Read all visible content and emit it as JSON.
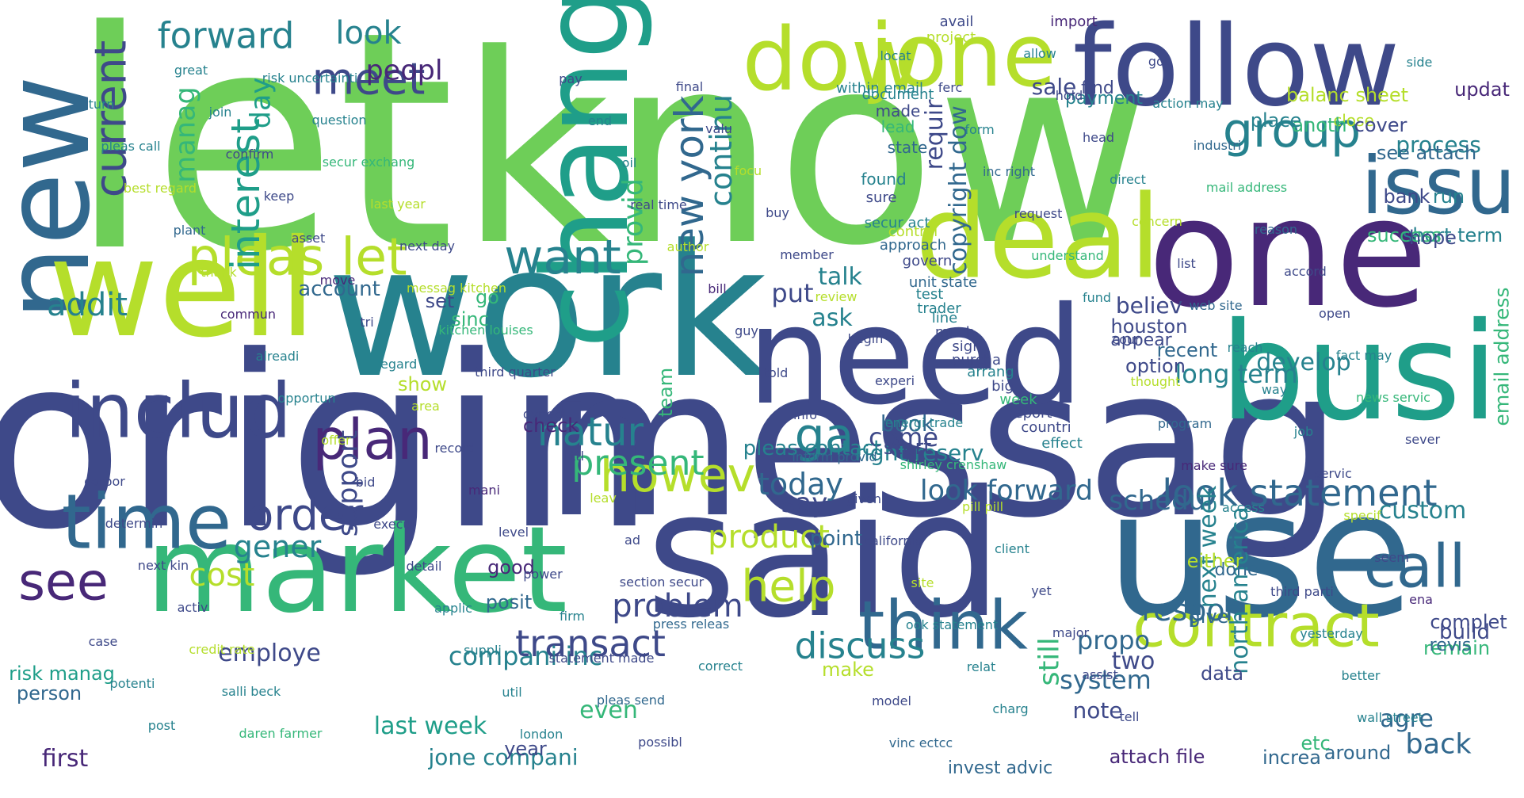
{
  "palette": [
    "#440154",
    "#482878",
    "#3e4989",
    "#31688e",
    "#26828e",
    "#1f9e89",
    "#35b779",
    "#6ece58",
    "#b5de2b",
    "#fde725"
  ],
  "words": [
    {
      "text": "let",
      "color": "#6ece58"
    },
    {
      "text": "know",
      "color": "#6ece58"
    },
    {
      "text": "origin",
      "color": "#3e4989"
    },
    {
      "text": "messag",
      "color": "#3e4989"
    },
    {
      "text": "work",
      "color": "#26828e"
    },
    {
      "text": "said",
      "color": "#3e4989"
    },
    {
      "text": "use",
      "color": "#31688e"
    },
    {
      "text": "market",
      "color": "#35b779"
    },
    {
      "text": "need",
      "color": "#3e4989"
    },
    {
      "text": "busi",
      "color": "#1f9e89"
    },
    {
      "text": "one",
      "color": "#482878"
    },
    {
      "text": "new",
      "color": "#31688e"
    },
    {
      "text": "well",
      "color": "#b5de2b"
    },
    {
      "text": "follow",
      "color": "#3e4989"
    },
    {
      "text": "deal",
      "color": "#b5de2b"
    },
    {
      "text": "chang",
      "color": "#1f9e89"
    },
    {
      "text": "jone",
      "color": "#b5de2b"
    },
    {
      "text": "dow",
      "color": "#b5de2b"
    },
    {
      "text": "issu",
      "color": "#31688e"
    },
    {
      "text": "includ",
      "color": "#3e4989"
    },
    {
      "text": "time",
      "color": "#31688e"
    },
    {
      "text": "plan",
      "color": "#482878"
    },
    {
      "text": "think",
      "color": "#31688e"
    },
    {
      "text": "contract",
      "color": "#b5de2b"
    },
    {
      "text": "see",
      "color": "#482878"
    },
    {
      "text": "pleas let",
      "color": "#b5de2b"
    },
    {
      "text": "want",
      "color": "#26828e"
    },
    {
      "text": "meet",
      "color": "#3e4989"
    },
    {
      "text": "order",
      "color": "#3e4989"
    },
    {
      "text": "howev",
      "color": "#b5de2b"
    },
    {
      "text": "call",
      "color": "#31688e"
    },
    {
      "text": "group",
      "color": "#26828e"
    },
    {
      "text": "look statement",
      "color": "#31688e"
    },
    {
      "text": "natur",
      "color": "#26828e"
    },
    {
      "text": "transact",
      "color": "#3e4989"
    },
    {
      "text": "discuss",
      "color": "#26828e"
    },
    {
      "text": "ga",
      "color": "#26828e"
    },
    {
      "text": "help",
      "color": "#b5de2b"
    },
    {
      "text": "present",
      "color": "#35b779"
    },
    {
      "text": "respon",
      "color": "#31688e"
    },
    {
      "text": "problem",
      "color": "#3e4989"
    },
    {
      "text": "current",
      "color": "#3e4989"
    },
    {
      "text": "forward",
      "color": "#26828e"
    },
    {
      "text": "look",
      "color": "#26828e"
    },
    {
      "text": "peopl",
      "color": "#482878"
    },
    {
      "text": "new york",
      "color": "#31688e"
    },
    {
      "text": "continu",
      "color": "#26828e"
    },
    {
      "text": "provid",
      "color": "#35b779"
    },
    {
      "text": "interest",
      "color": "#1f9e89"
    },
    {
      "text": "manag",
      "color": "#35b779"
    },
    {
      "text": "day",
      "color": "#1f9e89"
    },
    {
      "text": "addit",
      "color": "#26828e"
    },
    {
      "text": "gener",
      "color": "#26828e"
    },
    {
      "text": "support",
      "color": "#3e4989"
    },
    {
      "text": "cost",
      "color": "#b5de2b"
    },
    {
      "text": "employe",
      "color": "#3e4989"
    },
    {
      "text": "product",
      "color": "#b5de2b"
    },
    {
      "text": "today",
      "color": "#31688e"
    },
    {
      "text": "say",
      "color": "#3e4989"
    },
    {
      "text": "schedul",
      "color": "#31688e"
    },
    {
      "text": "look forward",
      "color": "#31688e"
    },
    {
      "text": "right reserv",
      "color": "#26828e"
    },
    {
      "text": "come",
      "color": "#3e4989"
    },
    {
      "text": "copyright dow",
      "color": "#31688e"
    },
    {
      "text": "requir",
      "color": "#3e4989"
    },
    {
      "text": "put",
      "color": "#3e4989"
    },
    {
      "text": "ask",
      "color": "#26828e"
    },
    {
      "text": "talk",
      "color": "#26828e"
    },
    {
      "text": "sale",
      "color": "#3e4989"
    },
    {
      "text": "updat",
      "color": "#482878"
    },
    {
      "text": "process",
      "color": "#26828e"
    },
    {
      "text": "long term",
      "color": "#26828e"
    },
    {
      "text": "develop",
      "color": "#26828e"
    },
    {
      "text": "custom",
      "color": "#26828e"
    },
    {
      "text": "email address",
      "color": "#35b779"
    },
    {
      "text": "back",
      "color": "#31688e"
    },
    {
      "text": "agre",
      "color": "#31688e"
    },
    {
      "text": "system",
      "color": "#31688e"
    },
    {
      "text": "propo",
      "color": "#31688e"
    },
    {
      "text": "still",
      "color": "#35b779"
    },
    {
      "text": "note",
      "color": "#3e4989"
    },
    {
      "text": "two",
      "color": "#3e4989"
    },
    {
      "text": "next week",
      "color": "#26828e"
    },
    {
      "text": "north america",
      "color": "#26828e"
    },
    {
      "text": "book",
      "color": "#31688e"
    },
    {
      "text": "start",
      "color": "#3e4989"
    },
    {
      "text": "team",
      "color": "#35b779"
    },
    {
      "text": "check",
      "color": "#482878"
    },
    {
      "text": "point",
      "color": "#31688e"
    },
    {
      "text": "make",
      "color": "#b5de2b"
    },
    {
      "text": "even",
      "color": "#35b779"
    },
    {
      "text": "compani inc",
      "color": "#26828e"
    },
    {
      "text": "last week",
      "color": "#1f9e89"
    },
    {
      "text": "jone compani",
      "color": "#26828e"
    },
    {
      "text": "first",
      "color": "#482878"
    },
    {
      "text": "person",
      "color": "#31688e"
    },
    {
      "text": "risk manag",
      "color": "#1f9e89"
    },
    {
      "text": "year",
      "color": "#3e4989"
    },
    {
      "text": "posit",
      "color": "#31688e"
    },
    {
      "text": "good",
      "color": "#482878"
    },
    {
      "text": "sinc",
      "color": "#35b779"
    },
    {
      "text": "set",
      "color": "#3e4989"
    },
    {
      "text": "show",
      "color": "#b5de2b"
    },
    {
      "text": "account",
      "color": "#31688e"
    },
    {
      "text": "go",
      "color": "#35b779"
    },
    {
      "text": "believ",
      "color": "#3e4989"
    },
    {
      "text": "houston",
      "color": "#3e4989"
    },
    {
      "text": "appear",
      "color": "#3e4989"
    },
    {
      "text": "option",
      "color": "#3e4989"
    },
    {
      "text": "recent",
      "color": "#31688e"
    },
    {
      "text": "pleas contact",
      "color": "#26828e"
    },
    {
      "text": "data",
      "color": "#3e4989"
    },
    {
      "text": "either",
      "color": "#b5de2b"
    },
    {
      "text": "done",
      "color": "#31688e"
    },
    {
      "text": "give",
      "color": "#31688e"
    },
    {
      "text": "attach file",
      "color": "#482878"
    },
    {
      "text": "invest advic",
      "color": "#31688e"
    },
    {
      "text": "increa",
      "color": "#31688e"
    },
    {
      "text": "around",
      "color": "#31688e"
    },
    {
      "text": "etc",
      "color": "#35b779"
    },
    {
      "text": "remain",
      "color": "#35b779"
    },
    {
      "text": "revis",
      "color": "#31688e"
    },
    {
      "text": "build",
      "color": "#3e4989"
    },
    {
      "text": "complet",
      "color": "#3e4989"
    },
    {
      "text": "short term",
      "color": "#26828e"
    },
    {
      "text": "success",
      "color": "#35b779"
    },
    {
      "text": "hope",
      "color": "#3e4989"
    },
    {
      "text": "run",
      "color": "#26828e"
    },
    {
      "text": "bank",
      "color": "#3e4989"
    },
    {
      "text": "see attach",
      "color": "#31688e"
    },
    {
      "text": "close",
      "color": "#b5de2b"
    },
    {
      "text": "cover",
      "color": "#3e4989"
    },
    {
      "text": "anoth",
      "color": "#35b779"
    },
    {
      "text": "place",
      "color": "#26828e"
    },
    {
      "text": "balanc sheet",
      "color": "#b5de2b"
    },
    {
      "text": "find",
      "color": "#3e4989"
    },
    {
      "text": "payment",
      "color": "#26828e"
    },
    {
      "text": "import",
      "color": "#482878"
    },
    {
      "text": "avail",
      "color": "#3e4989"
    },
    {
      "text": "project",
      "color": "#b5de2b"
    },
    {
      "text": "locat",
      "color": "#26828e"
    },
    {
      "text": "within email",
      "color": "#26828e"
    },
    {
      "text": "document",
      "color": "#26828e"
    },
    {
      "text": "made",
      "color": "#3e4989"
    },
    {
      "text": "lead",
      "color": "#35b779"
    },
    {
      "text": "state",
      "color": "#31688e"
    },
    {
      "text": "found",
      "color": "#26828e"
    },
    {
      "text": "sure",
      "color": "#3e4989"
    },
    {
      "text": "secur act",
      "color": "#26828e"
    },
    {
      "text": "control",
      "color": "#b5de2b"
    },
    {
      "text": "approach",
      "color": "#31688e"
    },
    {
      "text": "govern",
      "color": "#3e4989"
    },
    {
      "text": "unit state",
      "color": "#31688e"
    },
    {
      "text": "test",
      "color": "#26828e"
    },
    {
      "text": "trader",
      "color": "#26828e"
    },
    {
      "text": "line",
      "color": "#26828e"
    },
    {
      "text": "much",
      "color": "#3e4989"
    },
    {
      "text": "sign",
      "color": "#3e4989"
    },
    {
      "text": "purcha",
      "color": "#3e4989"
    },
    {
      "text": "arrang",
      "color": "#26828e"
    },
    {
      "text": "big",
      "color": "#3e4989"
    },
    {
      "text": "week",
      "color": "#35b779"
    },
    {
      "text": "report",
      "color": "#3e4989"
    },
    {
      "text": "countri",
      "color": "#3e4989"
    },
    {
      "text": "effect",
      "color": "#26828e"
    },
    {
      "text": "model",
      "color": "#3e4989"
    },
    {
      "text": "vinc ectcc",
      "color": "#31688e"
    },
    {
      "text": "ferc",
      "color": "#3e4989"
    },
    {
      "text": "form",
      "color": "#26828e"
    },
    {
      "text": "inc right",
      "color": "#31688e"
    },
    {
      "text": "request",
      "color": "#3e4989"
    },
    {
      "text": "understand",
      "color": "#35b779"
    },
    {
      "text": "fund",
      "color": "#26828e"
    },
    {
      "text": "cour",
      "color": "#3e4989"
    },
    {
      "text": "thought",
      "color": "#b5de2b"
    },
    {
      "text": "program",
      "color": "#31688e"
    },
    {
      "text": "make sure",
      "color": "#482878"
    },
    {
      "text": "access",
      "color": "#26828e"
    },
    {
      "text": "take",
      "color": "#3e4989"
    },
    {
      "text": "third parti",
      "color": "#3e4989"
    },
    {
      "text": "yesterday",
      "color": "#26828e"
    },
    {
      "text": "better",
      "color": "#26828e"
    },
    {
      "text": "wall street",
      "color": "#26828e"
    },
    {
      "text": "side",
      "color": "#26828e"
    },
    {
      "text": "turn",
      "color": "#26828e"
    },
    {
      "text": "pleas call",
      "color": "#26828e"
    },
    {
      "text": "best regard",
      "color": "#b5de2b"
    },
    {
      "text": "plant",
      "color": "#31688e"
    },
    {
      "text": "thank",
      "color": "#b5de2b"
    },
    {
      "text": "commun",
      "color": "#482878"
    },
    {
      "text": "alreadi",
      "color": "#26828e"
    },
    {
      "text": "opportun",
      "color": "#26828e"
    },
    {
      "text": "offer",
      "color": "#b5de2b"
    },
    {
      "text": "bid",
      "color": "#3e4989"
    },
    {
      "text": "execut",
      "color": "#3e4989"
    },
    {
      "text": "detail",
      "color": "#3e4989"
    },
    {
      "text": "applic",
      "color": "#26828e"
    },
    {
      "text": "suppli",
      "color": "#26828e"
    },
    {
      "text": "util",
      "color": "#26828e"
    },
    {
      "text": "london",
      "color": "#26828e"
    },
    {
      "text": "pay",
      "color": "#3e4989"
    },
    {
      "text": "end",
      "color": "#26828e"
    },
    {
      "text": "oil",
      "color": "#26828e"
    },
    {
      "text": "real time",
      "color": "#3e4989"
    },
    {
      "text": "author",
      "color": "#b5de2b"
    },
    {
      "text": "bill",
      "color": "#482878"
    },
    {
      "text": "guy",
      "color": "#3e4989"
    },
    {
      "text": "told",
      "color": "#3e4989"
    },
    {
      "text": "info",
      "color": "#3e4989"
    },
    {
      "text": "inform provid",
      "color": "#31688e"
    },
    {
      "text": "given",
      "color": "#3e4989"
    },
    {
      "text": "california",
      "color": "#3e4989"
    },
    {
      "text": "site",
      "color": "#b5de2b"
    },
    {
      "text": "ook statement",
      "color": "#26828e"
    },
    {
      "text": "relat",
      "color": "#26828e"
    },
    {
      "text": "charg",
      "color": "#26828e"
    },
    {
      "text": "allow",
      "color": "#26828e"
    },
    {
      "text": "hold",
      "color": "#3e4989"
    },
    {
      "text": "head",
      "color": "#3e4989"
    },
    {
      "text": "direct",
      "color": "#26828e"
    },
    {
      "text": "concern",
      "color": "#b5de2b"
    },
    {
      "text": "list",
      "color": "#3e4989"
    },
    {
      "text": "web site",
      "color": "#31688e"
    },
    {
      "text": "reach",
      "color": "#26828e"
    },
    {
      "text": "way",
      "color": "#26828e"
    },
    {
      "text": "job",
      "color": "#26828e"
    },
    {
      "text": "servic",
      "color": "#3e4989"
    },
    {
      "text": "specif",
      "color": "#b5de2b"
    },
    {
      "text": "seem",
      "color": "#3e4989"
    },
    {
      "text": "ena",
      "color": "#482878"
    },
    {
      "text": "case",
      "color": "#3e4989"
    },
    {
      "text": "potenti",
      "color": "#26828e"
    },
    {
      "text": "post",
      "color": "#26828e"
    },
    {
      "text": "great",
      "color": "#26828e"
    },
    {
      "text": "join",
      "color": "#26828e"
    },
    {
      "text": "confirm",
      "color": "#3e4989"
    },
    {
      "text": "keep",
      "color": "#3e4989"
    },
    {
      "text": "asset",
      "color": "#3e4989"
    },
    {
      "text": "move",
      "color": "#482878"
    },
    {
      "text": "tri",
      "color": "#3e4989"
    },
    {
      "text": "regard",
      "color": "#26828e"
    },
    {
      "text": "area",
      "color": "#b5de2b"
    },
    {
      "text": "record",
      "color": "#3e4989"
    },
    {
      "text": "mani",
      "color": "#482878"
    },
    {
      "text": "level",
      "color": "#3e4989"
    },
    {
      "text": "power",
      "color": "#3e4989"
    },
    {
      "text": "firm",
      "color": "#26828e"
    },
    {
      "text": "statement made",
      "color": "#3e4989"
    },
    {
      "text": "pleas send",
      "color": "#31688e"
    },
    {
      "text": "possibl",
      "color": "#3e4989"
    },
    {
      "text": "final",
      "color": "#3e4989"
    },
    {
      "text": "valu",
      "color": "#3e4989"
    },
    {
      "text": "focu",
      "color": "#b5de2b"
    },
    {
      "text": "buy",
      "color": "#3e4989"
    },
    {
      "text": "member",
      "color": "#3e4989"
    },
    {
      "text": "review",
      "color": "#b5de2b"
    },
    {
      "text": "begin",
      "color": "#3e4989"
    },
    {
      "text": "experi",
      "color": "#3e4989"
    },
    {
      "text": "energi trade",
      "color": "#26828e"
    },
    {
      "text": "shirley crenshaw",
      "color": "#35b779"
    },
    {
      "text": "pill pill",
      "color": "#b5de2b"
    },
    {
      "text": "client",
      "color": "#26828e"
    },
    {
      "text": "yet",
      "color": "#3e4989"
    },
    {
      "text": "major",
      "color": "#3e4989"
    },
    {
      "text": "assist",
      "color": "#3e4989"
    },
    {
      "text": "tell",
      "color": "#3e4989"
    },
    {
      "text": "got",
      "color": "#3e4989"
    },
    {
      "text": "action may",
      "color": "#26828e"
    },
    {
      "text": "industri",
      "color": "#31688e"
    },
    {
      "text": "mail address",
      "color": "#35b779"
    },
    {
      "text": "reason",
      "color": "#31688e"
    },
    {
      "text": "accord",
      "color": "#3e4989"
    },
    {
      "text": "open",
      "color": "#3e4989"
    },
    {
      "text": "fact may",
      "color": "#26828e"
    },
    {
      "text": "news servic",
      "color": "#35b779"
    },
    {
      "text": "sever",
      "color": "#3e4989"
    },
    {
      "text": "corpor",
      "color": "#3e4989"
    },
    {
      "text": "determin",
      "color": "#3e4989"
    },
    {
      "text": "next kin",
      "color": "#3e4989"
    },
    {
      "text": "activ",
      "color": "#3e4989"
    },
    {
      "text": "credit rate",
      "color": "#b5de2b"
    },
    {
      "text": "salli beck",
      "color": "#26828e"
    },
    {
      "text": "daren farmer",
      "color": "#35b779"
    },
    {
      "text": "risk uncertainti",
      "color": "#26828e"
    },
    {
      "text": "question",
      "color": "#26828e"
    },
    {
      "text": "secur exchang",
      "color": "#35b779"
    },
    {
      "text": "last year",
      "color": "#b5de2b"
    },
    {
      "text": "next day",
      "color": "#3e4989"
    },
    {
      "text": "messag kitchen",
      "color": "#b5de2b"
    },
    {
      "text": "kitchen louises",
      "color": "#35b779"
    },
    {
      "text": "third quarter",
      "color": "#3e4989"
    },
    {
      "text": "dynegi",
      "color": "#3e4989"
    },
    {
      "text": "littl",
      "color": "#3e4989"
    },
    {
      "text": "leav",
      "color": "#b5de2b"
    },
    {
      "text": "ad",
      "color": "#3e4989"
    },
    {
      "text": "section secur",
      "color": "#3e4989"
    },
    {
      "text": "press releas",
      "color": "#31688e"
    },
    {
      "text": "correct",
      "color": "#26828e"
    }
  ]
}
